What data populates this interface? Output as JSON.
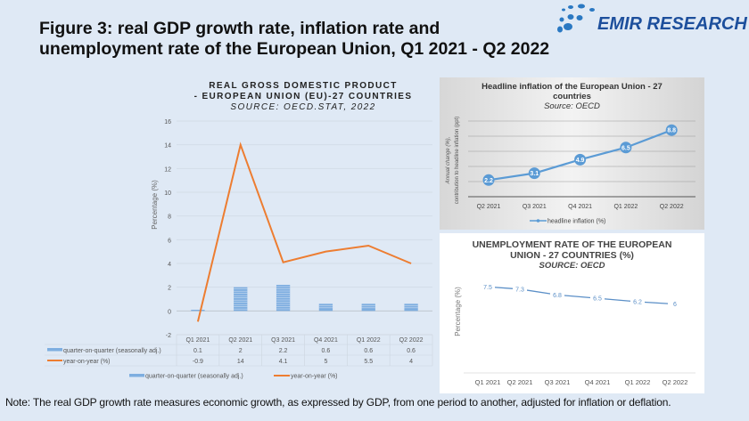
{
  "title_line1": "Figure 3: real GDP growth rate, inflation rate and",
  "title_line2": "unemployment rate of the European Union, Q1 2021 - Q2 2022",
  "logo": {
    "text": "EMIR RESEARCH",
    "color": "#1d4f9c"
  },
  "note": "Note: The real GDP growth rate measures economic growth, as expressed by GDP, from one period to another, adjusted for inflation or deflation.",
  "chart_data": [
    {
      "type": "bar+line",
      "title_line1": "REAL GROSS DOMESTIC PRODUCT",
      "title_line2": "- EUROPEAN UNION (EU)-27 COUNTRIES",
      "subtitle": "SOURCE: OECD.STAT, 2022",
      "ylabel": "Percentage (%)",
      "ylim": [
        -2,
        16
      ],
      "yticks": [
        "-2",
        "0",
        "2",
        "4",
        "6",
        "8",
        "10",
        "12",
        "14",
        "16"
      ],
      "grid": true,
      "legend": "bottom",
      "data_table": true,
      "categories": [
        "Q1 2021",
        "Q2 2021",
        "Q3 2021",
        "Q4 2021",
        "Q1 2022",
        "Q2 2022"
      ],
      "series": [
        {
          "name": "quarter-on-quarter (seasonally adj.)",
          "type": "bar",
          "color": "#7eaee0",
          "values": [
            0.1,
            2,
            2.2,
            0.6,
            0.6,
            0.6
          ]
        },
        {
          "name": "year-on-year (%)",
          "type": "line",
          "color": "#ed7d31",
          "values": [
            -0.9,
            14,
            4.1,
            5,
            5.5,
            4
          ]
        }
      ]
    },
    {
      "type": "line",
      "title_line1": "Headline inflation of the European Union - 27",
      "title_line2": "countries",
      "subtitle": "Source: OECD",
      "ylabel_line1": "Annual change (%),",
      "ylabel_line2": "contribution to headline inflation (ppt)",
      "ylim": [
        0,
        10
      ],
      "grid": true,
      "legend": "bottom",
      "categories": [
        "Q2 2021",
        "Q3 2021",
        "Q4 2021",
        "Q1 2022",
        "Q2 2022"
      ],
      "series": [
        {
          "name": "headline inflation (%)",
          "color": "#5b9bd5",
          "values": [
            2.2,
            3.1,
            4.9,
            6.5,
            8.8
          ]
        }
      ]
    },
    {
      "type": "line",
      "title_line1": "UNEMPLOYMENT RATE OF THE EUROPEAN",
      "title_line2": "UNION - 27 COUNTRIES (%)",
      "subtitle": "SOURCE: OECD",
      "ylabel": "Percentage (%)",
      "grid": false,
      "categories": [
        "Q1 2021",
        "Q2 2021",
        "Q3 2021",
        "Q4 2021",
        "Q1 2022",
        "Q2 2022"
      ],
      "series": [
        {
          "color": "#5b8fc7",
          "values": [
            7.5,
            7.3,
            6.8,
            6.5,
            6.2,
            6
          ]
        }
      ]
    }
  ]
}
